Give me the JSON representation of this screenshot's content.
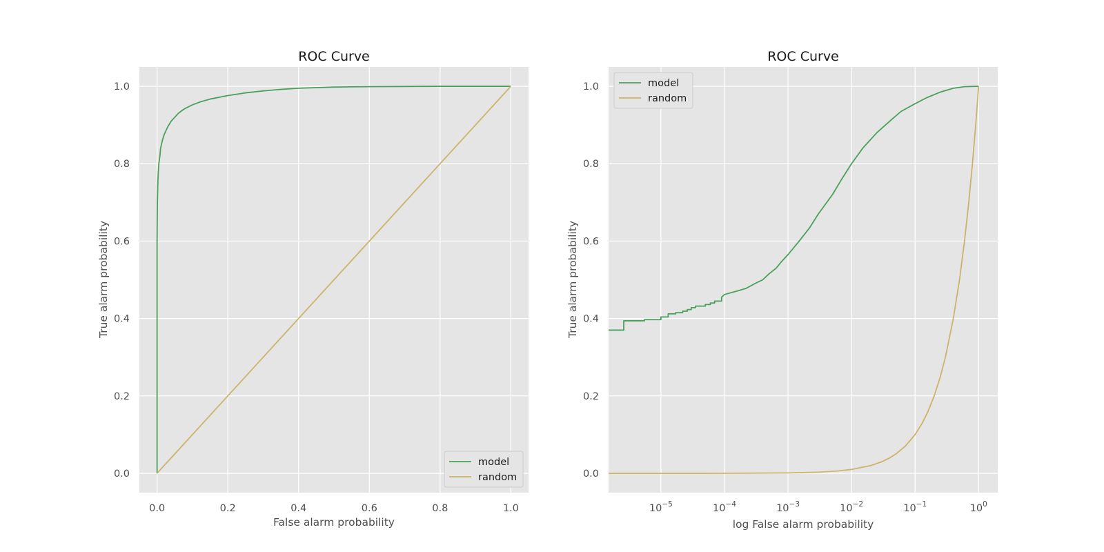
{
  "chart_data": [
    {
      "type": "line",
      "title": "ROC Curve",
      "xlabel": "False alarm probability",
      "ylabel": "True alarm probability",
      "xscale": "linear",
      "xlim": [
        -0.05,
        1.05
      ],
      "ylim": [
        -0.05,
        1.05
      ],
      "xticks": [
        0.0,
        0.2,
        0.4,
        0.6,
        0.8,
        1.0
      ],
      "xtick_labels": [
        "0.0",
        "0.2",
        "0.4",
        "0.6",
        "0.8",
        "1.0"
      ],
      "yticks": [
        0.0,
        0.2,
        0.4,
        0.6,
        0.8,
        1.0
      ],
      "ytick_labels": [
        "0.0",
        "0.2",
        "0.4",
        "0.6",
        "0.8",
        "1.0"
      ],
      "grid": true,
      "legend_position": "lower-right",
      "series": [
        {
          "name": "model",
          "color": "#4aa05a",
          "x": [
            0.0,
            0.0,
            0.0005,
            0.001,
            0.002,
            0.003,
            0.005,
            0.008,
            0.01,
            0.015,
            0.02,
            0.03,
            0.04,
            0.05,
            0.06,
            0.07,
            0.08,
            0.1,
            0.12,
            0.15,
            0.2,
            0.25,
            0.3,
            0.35,
            0.4,
            0.5,
            0.6,
            0.8,
            1.0
          ],
          "y": [
            0.0,
            0.6,
            0.66,
            0.7,
            0.74,
            0.77,
            0.8,
            0.82,
            0.84,
            0.86,
            0.875,
            0.895,
            0.91,
            0.92,
            0.93,
            0.937,
            0.943,
            0.952,
            0.959,
            0.967,
            0.976,
            0.983,
            0.988,
            0.992,
            0.995,
            0.998,
            0.999,
            1.0,
            1.0
          ]
        },
        {
          "name": "random",
          "color": "#ccb36a",
          "x": [
            0.0,
            1.0
          ],
          "y": [
            0.0,
            1.0
          ]
        }
      ]
    },
    {
      "type": "line",
      "title": "ROC Curve",
      "xlabel": "log False alarm probability",
      "ylabel": "True alarm probability",
      "xscale": "log",
      "xlim": [
        1.5e-06,
        2.0
      ],
      "ylim": [
        -0.05,
        1.05
      ],
      "xticks": [
        1e-05,
        0.0001,
        0.001,
        0.01,
        0.1,
        1
      ],
      "xtick_labels": [
        {
          "base": "10",
          "exp": "−5"
        },
        {
          "base": "10",
          "exp": "−4"
        },
        {
          "base": "10",
          "exp": "−3"
        },
        {
          "base": "10",
          "exp": "−2"
        },
        {
          "base": "10",
          "exp": "−1"
        },
        {
          "base": "10",
          "exp": "0"
        }
      ],
      "yticks": [
        0.0,
        0.2,
        0.4,
        0.6,
        0.8,
        1.0
      ],
      "ytick_labels": [
        "0.0",
        "0.2",
        "0.4",
        "0.6",
        "0.8",
        "1.0"
      ],
      "grid": true,
      "legend_position": "upper-left",
      "series": [
        {
          "name": "model",
          "color": "#4aa05a",
          "x": [
            1.5e-06,
            2.6e-06,
            2.6e-06,
            5.5e-06,
            5.5e-06,
            1e-05,
            1e-05,
            1.3e-05,
            1.3e-05,
            1.7e-05,
            1.7e-05,
            2.2e-05,
            2.2e-05,
            2.6e-05,
            2.6e-05,
            3e-05,
            3e-05,
            3.5e-05,
            3.5e-05,
            5e-05,
            5e-05,
            6e-05,
            6e-05,
            7e-05,
            7e-05,
            9e-05,
            9e-05,
            0.0001,
            0.00015,
            0.00022,
            0.0003,
            0.0004,
            0.0005,
            0.00065,
            0.0008,
            0.001,
            0.0015,
            0.0022,
            0.003,
            0.005,
            0.007,
            0.01,
            0.015,
            0.025,
            0.04,
            0.06,
            0.1,
            0.15,
            0.25,
            0.4,
            0.6,
            1.0
          ],
          "y": [
            0.37,
            0.37,
            0.394,
            0.394,
            0.397,
            0.397,
            0.404,
            0.404,
            0.412,
            0.412,
            0.415,
            0.415,
            0.419,
            0.419,
            0.423,
            0.423,
            0.428,
            0.428,
            0.432,
            0.432,
            0.436,
            0.436,
            0.44,
            0.44,
            0.445,
            0.445,
            0.455,
            0.462,
            0.47,
            0.478,
            0.49,
            0.5,
            0.515,
            0.53,
            0.548,
            0.565,
            0.6,
            0.635,
            0.67,
            0.72,
            0.76,
            0.8,
            0.84,
            0.88,
            0.91,
            0.935,
            0.955,
            0.97,
            0.985,
            0.995,
            0.999,
            1.0
          ]
        },
        {
          "name": "random",
          "color": "#ccb36a",
          "x": [
            1.5e-06,
            1e-05,
            0.0001,
            0.001,
            0.003,
            0.006,
            0.01,
            0.02,
            0.03,
            0.04,
            0.05,
            0.07,
            0.1,
            0.13,
            0.16,
            0.2,
            0.25,
            0.3,
            0.4,
            0.5,
            0.6,
            0.7,
            0.8,
            0.9,
            1.0
          ],
          "y": [
            1.5e-06,
            1e-05,
            0.0001,
            0.001,
            0.003,
            0.006,
            0.01,
            0.02,
            0.03,
            0.04,
            0.05,
            0.07,
            0.1,
            0.13,
            0.16,
            0.2,
            0.25,
            0.3,
            0.4,
            0.5,
            0.6,
            0.7,
            0.8,
            0.9,
            1.0
          ]
        }
      ]
    }
  ]
}
